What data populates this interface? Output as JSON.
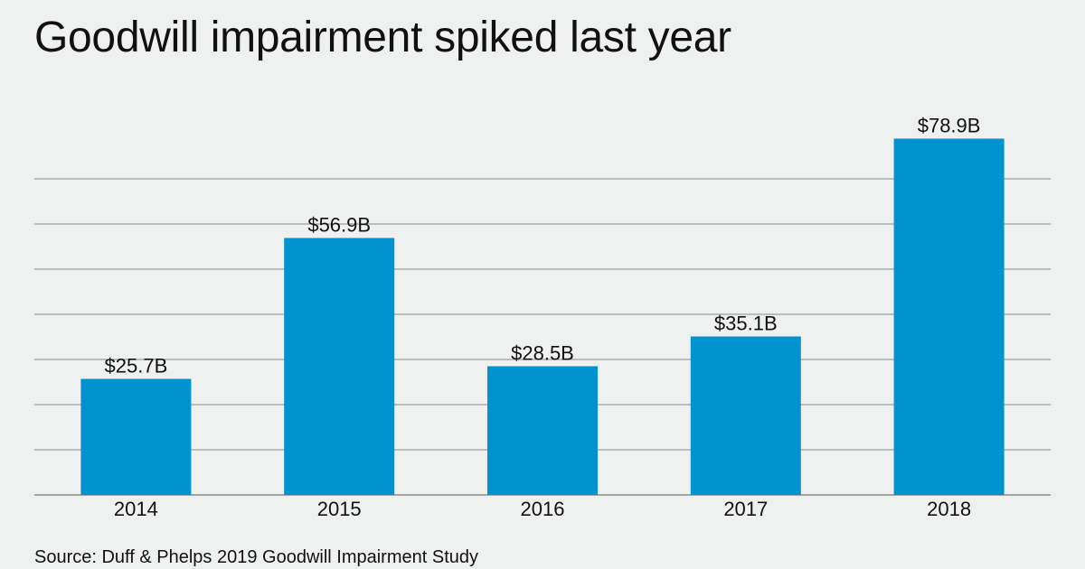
{
  "title": "Goodwill impairment spiked last year",
  "source": "Source: Duff & Phelps 2019 Goodwill Impairment Study",
  "colors": {
    "background": "#eff1f0",
    "bar": "#0093d0",
    "grid": "#8a8a8a",
    "text": "#111111"
  },
  "chart_data": {
    "type": "bar",
    "categories": [
      "2014",
      "2015",
      "2016",
      "2017",
      "2018"
    ],
    "values": [
      25.7,
      56.9,
      28.5,
      35.1,
      78.9
    ],
    "data_labels": [
      "$25.7B",
      "$56.9B",
      "$28.5B",
      "$35.1B",
      "$78.9B"
    ],
    "title": "Goodwill impairment spiked last year",
    "xlabel": "",
    "ylabel": "",
    "ylim": [
      0,
      80
    ],
    "y_tick_labels_shown": false,
    "grid": true,
    "legend": "none"
  }
}
